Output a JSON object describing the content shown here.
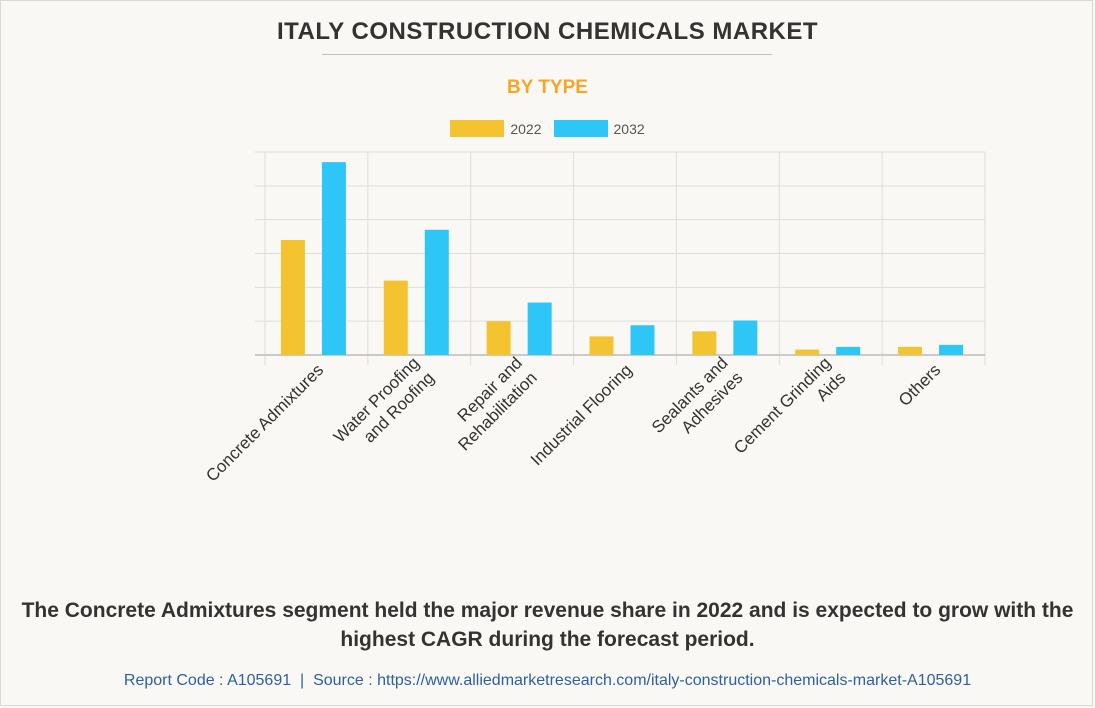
{
  "header": {
    "title": "ITALY CONSTRUCTION CHEMICALS MARKET",
    "subtitle": "BY TYPE"
  },
  "colors": {
    "series_2022": "#f4c430",
    "series_2032": "#2ec6f7",
    "accent": "#f5a623",
    "grid": "#dddddd",
    "link": "#2e5f9e"
  },
  "chart_data": {
    "type": "bar",
    "title": "ITALY CONSTRUCTION CHEMICALS MARKET",
    "subtitle": "BY TYPE",
    "xlabel": "",
    "ylabel": "",
    "ylim": [
      0,
      6
    ],
    "grid": true,
    "legend_position": "top-center",
    "categories": [
      [
        "Concrete Admixtures"
      ],
      [
        "Water Proofing",
        "and Roofing"
      ],
      [
        "Repair and",
        "Rehabilitation"
      ],
      [
        "Industrial Flooring"
      ],
      [
        "Sealants and",
        "Adhesives"
      ],
      [
        "Cement Grinding",
        "Aids"
      ],
      [
        "Others"
      ]
    ],
    "series": [
      {
        "name": "2022",
        "values": [
          3.4,
          2.2,
          1.0,
          0.55,
          0.7,
          0.16,
          0.24
        ]
      },
      {
        "name": "2032",
        "values": [
          5.7,
          3.7,
          1.55,
          0.88,
          1.02,
          0.24,
          0.3
        ]
      }
    ]
  },
  "summary": "The Concrete Admixtures segment held the major revenue share in 2022 and is expected to grow with the highest CAGR during the forecast period.",
  "footer": {
    "report_code": "Report Code : A105691",
    "separator": "|",
    "source": "Source : https://www.alliedmarketresearch.com/italy-construction-chemicals-market-A105691"
  }
}
